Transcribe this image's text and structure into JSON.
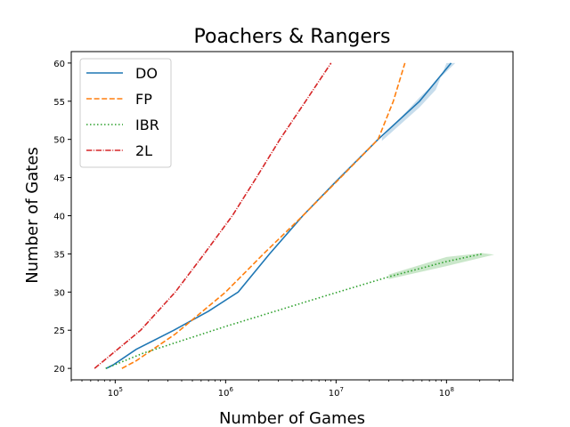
{
  "chart_data": {
    "type": "line",
    "title": "Poachers & Rangers",
    "xlabel": "Number of Games",
    "ylabel": "Number of Gates",
    "xscale": "log",
    "xlim": [
      40000,
      400000000
    ],
    "ylim": [
      18.5,
      61.5
    ],
    "grid": false,
    "legend_position": "top-left",
    "x_ticks": [
      {
        "value": 100000,
        "base": "10",
        "exp": "5"
      },
      {
        "value": 1000000,
        "base": "10",
        "exp": "6"
      },
      {
        "value": 10000000,
        "base": "10",
        "exp": "7"
      },
      {
        "value": 100000000,
        "base": "10",
        "exp": "8"
      }
    ],
    "y_ticks": [
      "20",
      "25",
      "30",
      "35",
      "40",
      "45",
      "50",
      "55",
      "60"
    ],
    "series": [
      {
        "name": "DO",
        "color": "#1f77b4",
        "style": "solid",
        "points": [
          [
            83000,
            20
          ],
          [
            97000,
            20.5
          ],
          [
            155000,
            22.5
          ],
          [
            340000,
            25
          ],
          [
            700000,
            27.5
          ],
          [
            1300000,
            30
          ],
          [
            2500000,
            35
          ],
          [
            5000000,
            40
          ],
          [
            10000000,
            44.5
          ],
          [
            24000000,
            50
          ],
          [
            57000000,
            55
          ],
          [
            110000000,
            60
          ]
        ],
        "band_upper": [
          [
            120000000,
            60
          ],
          [
            80000000,
            57.5
          ],
          [
            57000000,
            55.5
          ],
          [
            26000000,
            50.2
          ]
        ],
        "band_lower": [
          [
            26000000,
            49.8
          ],
          [
            57000000,
            54.2
          ],
          [
            80000000,
            56.5
          ],
          [
            100000000,
            60
          ]
        ]
      },
      {
        "name": "FP",
        "color": "#ff7f0e",
        "style": "dashed",
        "points": [
          [
            115000,
            20
          ],
          [
            155000,
            21
          ],
          [
            350000,
            24.5
          ],
          [
            1000000,
            30
          ],
          [
            2200000,
            35
          ],
          [
            5000000,
            40
          ],
          [
            11000000,
            45
          ],
          [
            24000000,
            50
          ],
          [
            33000000,
            55
          ],
          [
            42000000,
            60
          ]
        ]
      },
      {
        "name": "IBR",
        "color": "#2ca02c",
        "style": "dotted",
        "points": [
          [
            82000,
            20
          ],
          [
            180000,
            22
          ],
          [
            1000000,
            25.5
          ],
          [
            8000000,
            29.5
          ],
          [
            30000000,
            32
          ],
          [
            100000000,
            34
          ],
          [
            210000000,
            35
          ]
        ],
        "band_upper": [
          [
            210000000,
            35.1
          ],
          [
            100000000,
            34.6
          ],
          [
            30000000,
            32.3
          ]
        ],
        "band_lower": [
          [
            30000000,
            31.7
          ],
          [
            100000000,
            33.4
          ],
          [
            270000000,
            34.9
          ]
        ]
      },
      {
        "name": "2L",
        "color": "#d62728",
        "style": "dashdot",
        "points": [
          [
            65000,
            20
          ],
          [
            170000,
            25
          ],
          [
            350000,
            30
          ],
          [
            640000,
            35
          ],
          [
            1150000,
            40
          ],
          [
            1900000,
            45
          ],
          [
            3100000,
            50
          ],
          [
            5300000,
            55
          ],
          [
            9000000,
            60
          ]
        ]
      }
    ]
  }
}
